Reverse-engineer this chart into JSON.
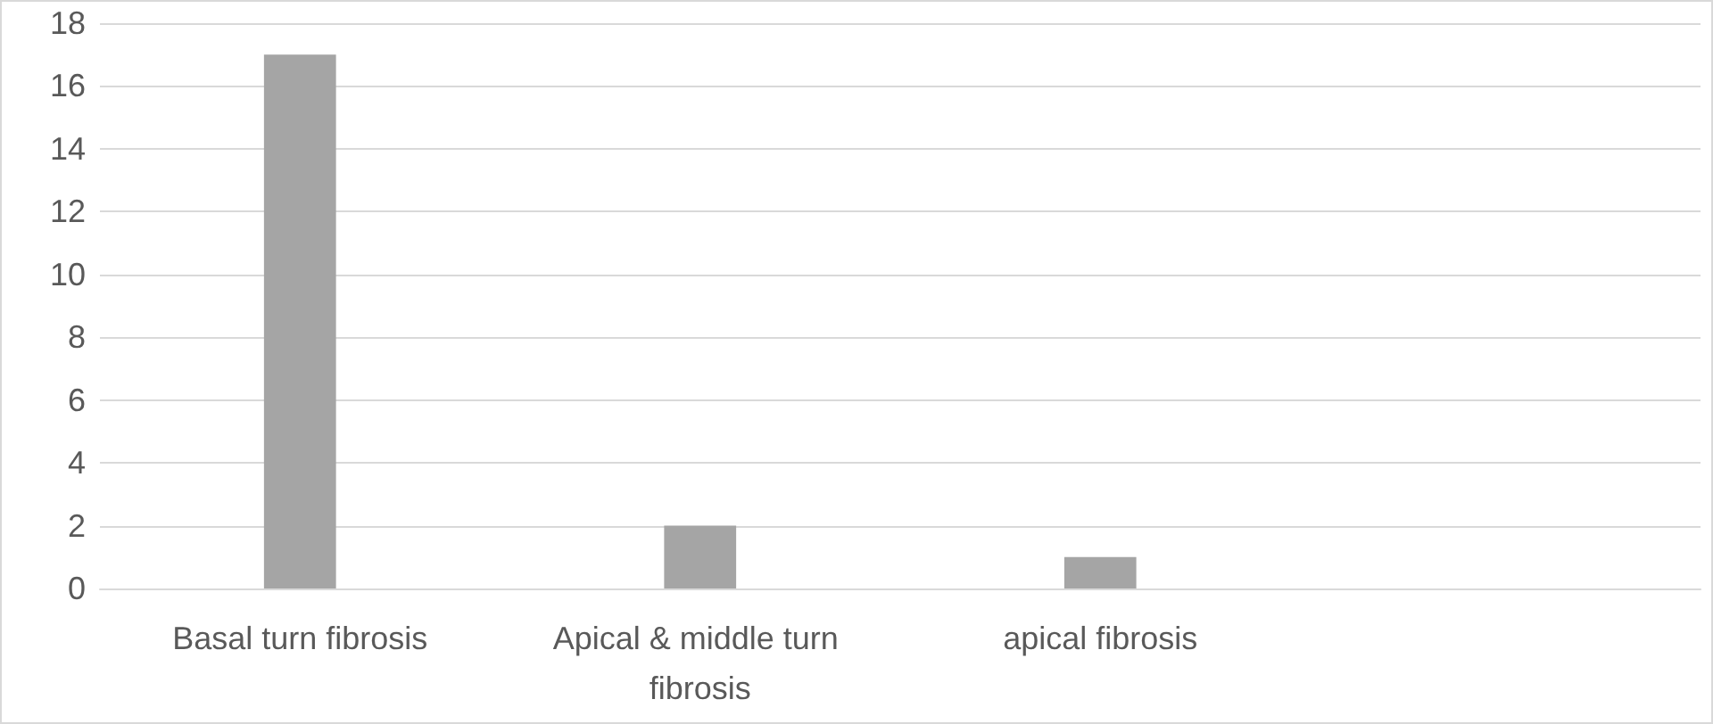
{
  "chart_data": {
    "type": "bar",
    "categories": [
      "Basal turn fibrosis",
      "Apical & middle turn fibrosis",
      "apical fibrosis",
      null
    ],
    "values": [
      17,
      2,
      1,
      null
    ],
    "color": "#a5a5a5",
    "ylim": [
      0,
      18
    ],
    "yticks": [
      0,
      2,
      4,
      6,
      8,
      10,
      12,
      14,
      16,
      18
    ],
    "grid": true
  }
}
